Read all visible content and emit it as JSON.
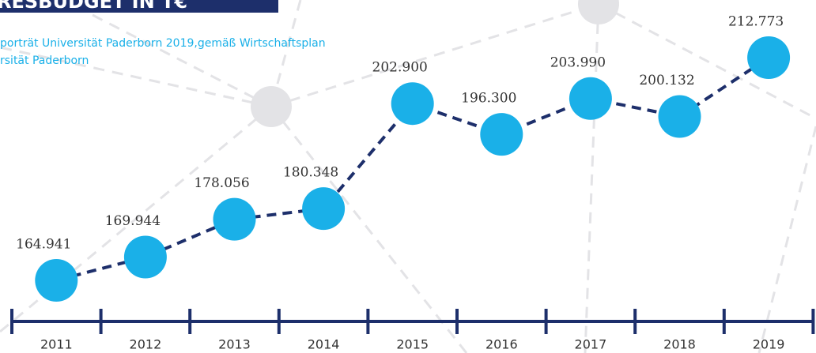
{
  "chart_data": {
    "type": "line",
    "title": "RESBUDGET IN T€",
    "subtitle": [
      "porträt Universität Paderborn 2019,gemäß Wirtschaftsplan",
      "rsität Paderborn"
    ],
    "categories": [
      "2011",
      "2012",
      "2013",
      "2014",
      "2015",
      "2016",
      "2017",
      "2018",
      "2019"
    ],
    "series": [
      {
        "color": "#1ab0e8",
        "values": [
          164941,
          169944,
          178056,
          180348,
          202900,
          196300,
          203990,
          200132,
          212773
        ],
        "value_labels": [
          "164.941",
          "169.944",
          "178.056",
          "180.348",
          "202.900",
          "196.300",
          "203.990",
          "200.132",
          "212.773"
        ]
      }
    ],
    "line_color": "#1d2f6b"
  }
}
